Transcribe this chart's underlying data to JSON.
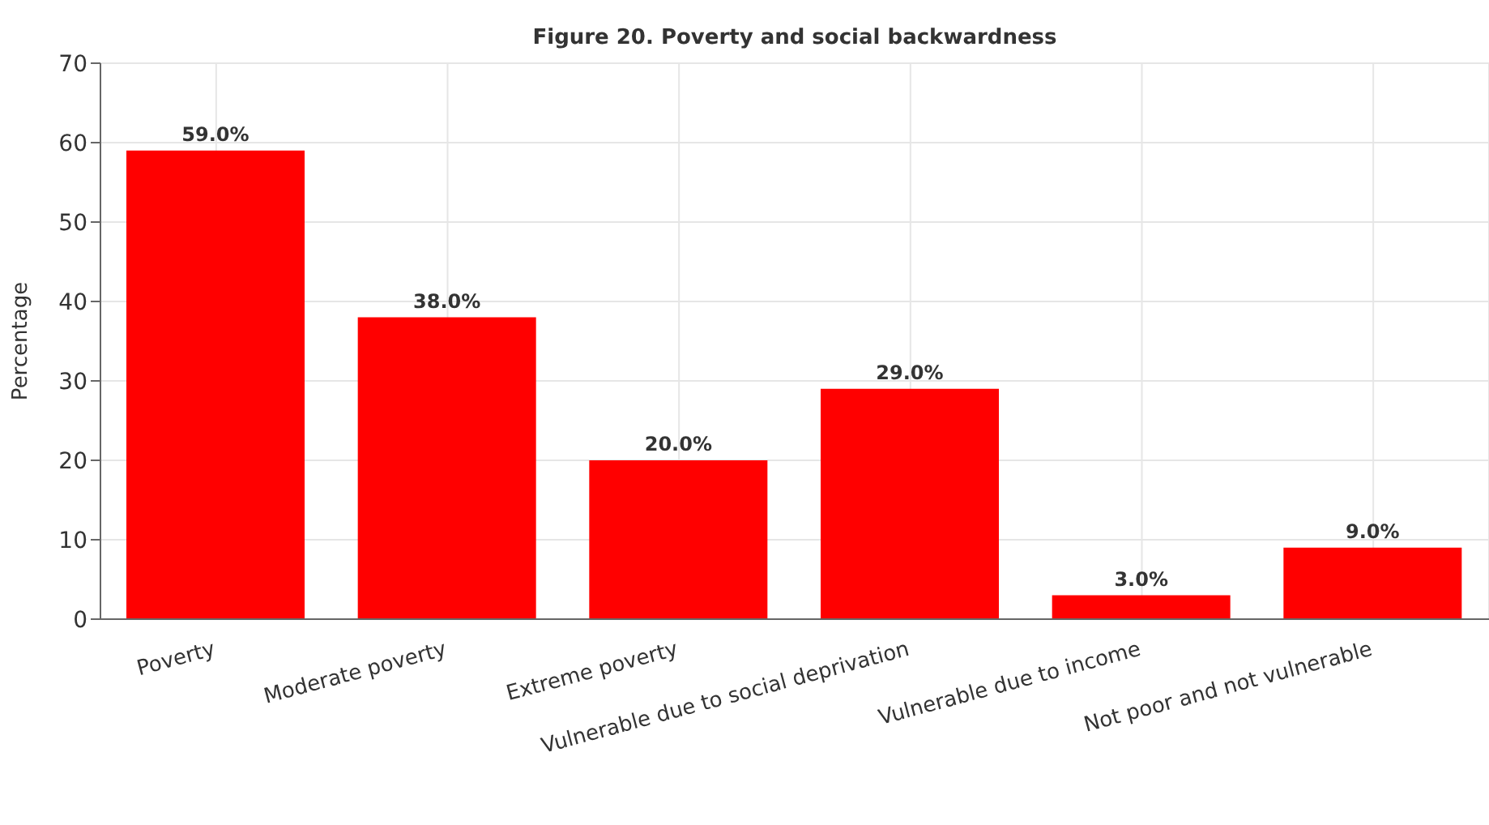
{
  "chart_data": {
    "type": "bar",
    "title": "Figure 20. Poverty and social backwardness",
    "ylabel": "Percentage",
    "categories": [
      "Poverty",
      "Moderate poverty",
      "Extreme poverty",
      "Vulnerable due to social deprivation",
      "Vulnerable due to income",
      "Not poor and not vulnerable"
    ],
    "values": [
      59,
      38,
      20,
      29,
      3,
      9
    ],
    "value_labels": [
      "59.0%",
      "38.0%",
      "20.0%",
      "29.0%",
      "3.0%",
      "9.0%"
    ],
    "color": "#ff0000",
    "ylim": [
      0,
      70
    ],
    "yticks": [
      0,
      10,
      20,
      30,
      40,
      50,
      60,
      70
    ],
    "grid": true
  }
}
